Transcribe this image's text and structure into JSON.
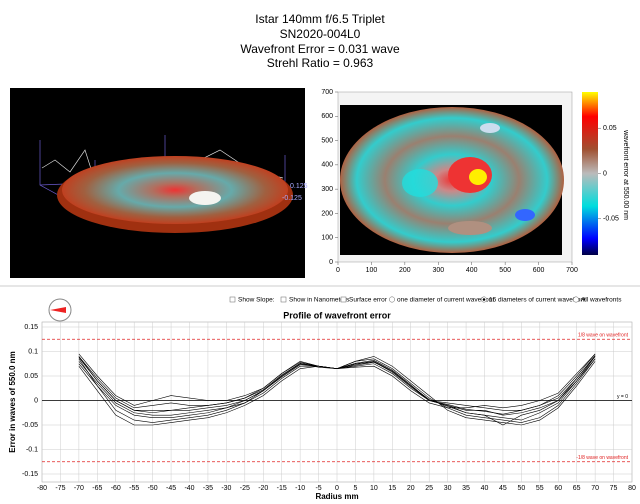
{
  "header": {
    "lines": [
      "Istar 140mm f/6.5 Triplet",
      "SN2020-004L0",
      "Wavefront Error = 0.031 wave",
      "Strehl Ratio = 0.963"
    ]
  },
  "three_d": {
    "labels": [
      "0.125",
      "-0.125"
    ]
  },
  "heatmap": {
    "xlim": [
      0,
      700
    ],
    "ylim": [
      0,
      700
    ],
    "xticks": [
      0,
      100,
      200,
      300,
      400,
      500,
      600,
      700
    ],
    "yticks": [
      0,
      100,
      200,
      300,
      400,
      500,
      600,
      700
    ],
    "colorbar_lim": [
      -0.09,
      0.09
    ],
    "colorbar_ticks": [
      0.05,
      0,
      -0.05
    ],
    "colorbar_label": "wavefront error at 550.00 nm"
  },
  "controls": {
    "checkboxes": [
      "Show Slope:",
      "Show in Nanometers",
      "Surface error"
    ],
    "radios": [
      "one diameter of current wavefront",
      "16 diameters of current wavefront",
      "All wavefronts"
    ],
    "selected_radio": 1
  },
  "chart_data": {
    "type": "line",
    "title": "Profile of wavefront error",
    "x_label": "Radius mm",
    "y_label": "Error in waves of  550.0 nm",
    "color": "#000000",
    "grid": true,
    "xlim": [
      -80,
      80
    ],
    "ylim": [
      -0.15,
      0.15
    ],
    "xticks": [
      -80,
      -75,
      -70,
      -65,
      -60,
      -55,
      -50,
      -45,
      -40,
      -35,
      -30,
      -25,
      -20,
      -15,
      -10,
      -5,
      0,
      5,
      10,
      15,
      20,
      25,
      30,
      35,
      40,
      45,
      50,
      55,
      60,
      65,
      70,
      75,
      80
    ],
    "yticks": [
      0.15,
      0.1,
      0.05,
      0,
      -0.05,
      -0.1,
      -0.15
    ],
    "x": [
      -70,
      -65,
      -60,
      -55,
      -50,
      -45,
      -40,
      -35,
      -30,
      -25,
      -20,
      -15,
      -10,
      -5,
      0,
      5,
      10,
      15,
      20,
      25,
      30,
      35,
      40,
      45,
      50,
      55,
      60,
      65,
      70
    ],
    "series": [
      {
        "values": [
          0.09,
          0.04,
          0.0,
          -0.02,
          -0.02,
          -0.02,
          -0.02,
          -0.015,
          -0.01,
          0.0,
          0.02,
          0.05,
          0.075,
          0.07,
          0.065,
          0.075,
          0.08,
          0.06,
          0.03,
          0.0,
          -0.01,
          -0.02,
          -0.02,
          -0.03,
          -0.025,
          -0.015,
          0.0,
          0.04,
          0.09
        ]
      },
      {
        "values": [
          0.095,
          0.05,
          0.01,
          -0.01,
          0.0,
          0.01,
          0.005,
          0.0,
          0.0,
          0.01,
          0.025,
          0.055,
          0.08,
          0.07,
          0.065,
          0.07,
          0.075,
          0.055,
          0.025,
          0.0,
          -0.005,
          -0.01,
          -0.015,
          -0.02,
          -0.02,
          -0.01,
          0.01,
          0.05,
          0.095
        ]
      },
      {
        "values": [
          0.085,
          0.03,
          -0.02,
          -0.04,
          -0.045,
          -0.04,
          -0.035,
          -0.03,
          -0.02,
          -0.005,
          0.015,
          0.045,
          0.07,
          0.07,
          0.065,
          0.08,
          0.085,
          0.065,
          0.035,
          0.005,
          -0.015,
          -0.03,
          -0.035,
          -0.04,
          -0.045,
          -0.035,
          -0.01,
          0.035,
          0.085
        ]
      },
      {
        "values": [
          0.08,
          0.035,
          -0.005,
          -0.025,
          -0.03,
          -0.03,
          -0.025,
          -0.02,
          -0.015,
          -0.005,
          0.02,
          0.05,
          0.075,
          0.068,
          0.065,
          0.072,
          0.078,
          0.06,
          0.03,
          0.002,
          -0.012,
          -0.025,
          -0.03,
          -0.05,
          -0.03,
          -0.02,
          0.0,
          0.045,
          0.09
        ]
      },
      {
        "values": [
          0.07,
          0.02,
          -0.03,
          -0.05,
          -0.05,
          -0.045,
          -0.04,
          -0.035,
          -0.025,
          -0.01,
          0.01,
          0.04,
          0.065,
          0.07,
          0.065,
          0.08,
          0.09,
          0.07,
          0.04,
          0.01,
          -0.02,
          -0.035,
          -0.04,
          -0.045,
          -0.05,
          -0.04,
          -0.015,
          0.03,
          0.08
        ]
      },
      {
        "values": [
          0.09,
          0.045,
          0.005,
          -0.015,
          -0.01,
          -0.005,
          -0.01,
          -0.01,
          -0.005,
          0.005,
          0.025,
          0.055,
          0.078,
          0.07,
          0.065,
          0.068,
          0.07,
          0.05,
          0.02,
          -0.005,
          -0.015,
          -0.015,
          -0.01,
          -0.015,
          -0.01,
          0.0,
          0.015,
          0.055,
          0.095
        ]
      },
      {
        "values": [
          0.075,
          0.03,
          -0.01,
          -0.03,
          -0.035,
          -0.035,
          -0.03,
          -0.025,
          -0.015,
          0.0,
          0.02,
          0.048,
          0.073,
          0.07,
          0.065,
          0.076,
          0.082,
          0.062,
          0.032,
          0.0,
          -0.01,
          -0.025,
          -0.03,
          -0.035,
          -0.04,
          -0.025,
          -0.005,
          0.04,
          0.085
        ]
      },
      {
        "values": [
          0.088,
          0.04,
          0.0,
          -0.02,
          -0.025,
          -0.02,
          -0.015,
          -0.01,
          -0.005,
          0.005,
          0.022,
          0.052,
          0.076,
          0.07,
          0.065,
          0.074,
          0.079,
          0.058,
          0.028,
          0.0,
          -0.008,
          -0.018,
          -0.022,
          -0.028,
          -0.02,
          -0.01,
          0.005,
          0.045,
          0.092
        ]
      }
    ],
    "reference_lines": [
      {
        "value": 0.125,
        "label": "1/8 wave on wavefront",
        "color": "#e02020",
        "dashed": true
      },
      {
        "value": -0.125,
        "label": "-1/8 wave on wavefront",
        "color": "#e02020",
        "dashed": true
      },
      {
        "value": 0,
        "label": "y = 0",
        "color": "#000000",
        "dashed": false
      }
    ]
  }
}
